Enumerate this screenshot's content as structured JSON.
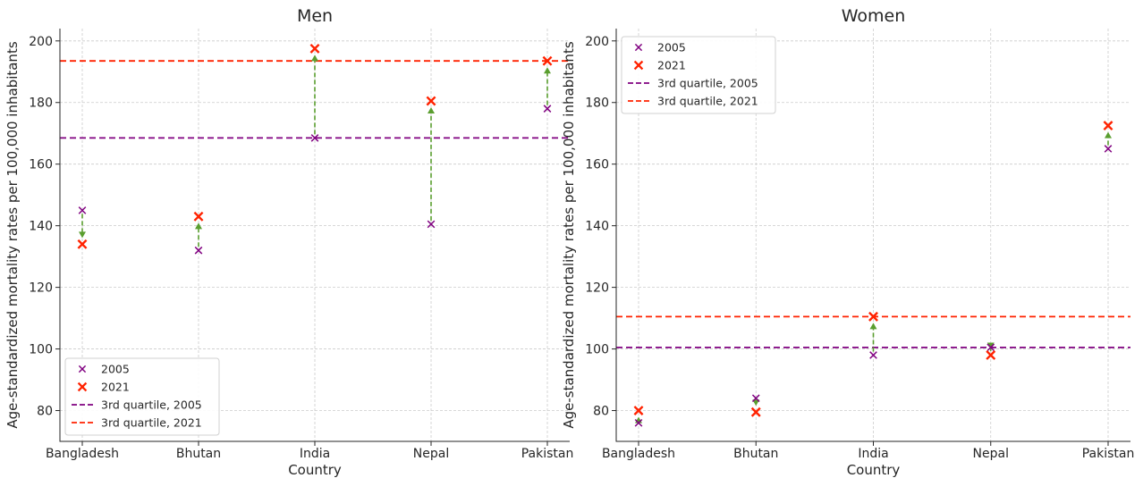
{
  "chart_data": [
    {
      "type": "scatter",
      "title": "Men",
      "xlabel": "Country",
      "ylabel": "Age-standardized mortality rates per 100,000 inhabitants",
      "categories": [
        "Bangladesh",
        "Bhutan",
        "India",
        "Nepal",
        "Pakistan"
      ],
      "ylim": [
        70,
        204
      ],
      "yticks": [
        80,
        100,
        120,
        140,
        160,
        180,
        200
      ],
      "grid": true,
      "legend_placement": "lower-left",
      "series": [
        {
          "name": "2005",
          "color": "#800080",
          "marker": "x",
          "values": [
            145,
            132,
            168.5,
            140.5,
            178
          ]
        },
        {
          "name": "2021",
          "color": "#ff2200",
          "marker": "x",
          "values": [
            134,
            143,
            197.5,
            180.5,
            193.5
          ]
        }
      ],
      "reference_lines": [
        {
          "name": "3rd quartile, 2005",
          "color": "#800080",
          "value": 168.5
        },
        {
          "name": "3rd quartile, 2021",
          "color": "#ff2200",
          "value": 193.5
        }
      ],
      "change_arrow_color": "#5a9e2f"
    },
    {
      "type": "scatter",
      "title": "Women",
      "xlabel": "Country",
      "ylabel": "Age-standardized mortality rates per 100,000 inhabitants",
      "categories": [
        "Bangladesh",
        "Bhutan",
        "India",
        "Nepal",
        "Pakistan"
      ],
      "ylim": [
        70,
        204
      ],
      "yticks": [
        80,
        100,
        120,
        140,
        160,
        180,
        200
      ],
      "grid": true,
      "legend_placement": "upper-left",
      "series": [
        {
          "name": "2005",
          "color": "#800080",
          "marker": "x",
          "values": [
            76,
            84,
            98,
            100.5,
            165
          ]
        },
        {
          "name": "2021",
          "color": "#ff2200",
          "marker": "x",
          "values": [
            80,
            79.5,
            110.5,
            98,
            172.5
          ]
        }
      ],
      "reference_lines": [
        {
          "name": "3rd quartile, 2005",
          "color": "#800080",
          "value": 100.5
        },
        {
          "name": "3rd quartile, 2021",
          "color": "#ff2200",
          "value": 110.5
        }
      ],
      "change_arrow_color": "#5a9e2f"
    }
  ]
}
